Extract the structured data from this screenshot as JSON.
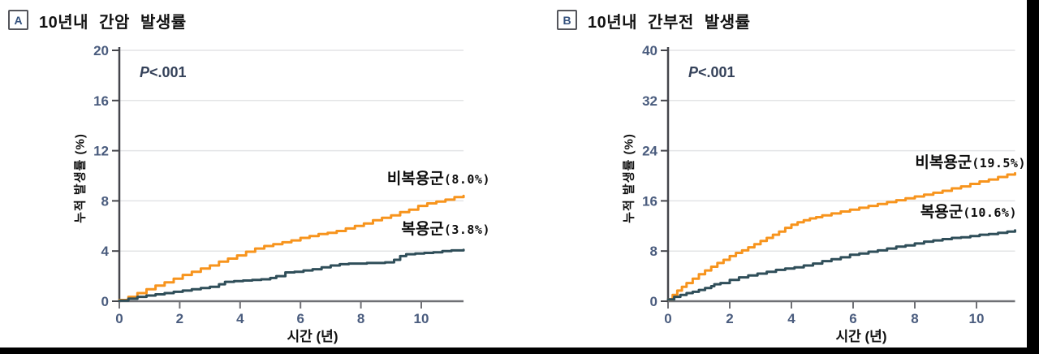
{
  "chart_data": [
    {
      "type": "line",
      "panel_letter": "A",
      "title": "10년내 간암 발생률",
      "p_value": {
        "symbol": "P",
        "text": "<.001"
      },
      "x_axis": {
        "label": "시간 (년)",
        "ticks": [
          0,
          2,
          4,
          6,
          8,
          10
        ],
        "range": [
          0,
          11.4
        ]
      },
      "y_axis": {
        "label": "누적 발생률 (%)",
        "ticks": [
          0,
          4,
          8,
          12,
          16,
          20
        ],
        "range": [
          0,
          20
        ]
      },
      "grid": "horizontal",
      "legend_position": "inline-annotations",
      "series": [
        {
          "name": "비복용군",
          "value_label": "(8.0%)",
          "ten_year_rate_pct": 8.0,
          "color": "#F7941D",
          "points": [
            [
              0,
              0.1
            ],
            [
              0.3,
              0.35
            ],
            [
              0.6,
              0.65
            ],
            [
              0.9,
              0.95
            ],
            [
              1.2,
              1.25
            ],
            [
              1.5,
              1.5
            ],
            [
              1.8,
              1.8
            ],
            [
              2.1,
              2.1
            ],
            [
              2.4,
              2.35
            ],
            [
              2.7,
              2.6
            ],
            [
              3,
              2.85
            ],
            [
              3.3,
              3.15
            ],
            [
              3.6,
              3.4
            ],
            [
              3.9,
              3.65
            ],
            [
              4.2,
              3.95
            ],
            [
              4.5,
              4.2
            ],
            [
              4.8,
              4.4
            ],
            [
              5.1,
              4.55
            ],
            [
              5.4,
              4.7
            ],
            [
              5.7,
              4.85
            ],
            [
              6,
              5.05
            ],
            [
              6.3,
              5.2
            ],
            [
              6.6,
              5.35
            ],
            [
              6.9,
              5.45
            ],
            [
              7.2,
              5.6
            ],
            [
              7.5,
              5.8
            ],
            [
              7.8,
              6
            ],
            [
              8.1,
              6.2
            ],
            [
              8.4,
              6.45
            ],
            [
              8.7,
              6.65
            ],
            [
              9,
              6.85
            ],
            [
              9.3,
              7.1
            ],
            [
              9.6,
              7.3
            ],
            [
              9.9,
              7.6
            ],
            [
              10.2,
              7.8
            ],
            [
              10.5,
              7.95
            ],
            [
              10.8,
              8.1
            ],
            [
              11.1,
              8.3
            ],
            [
              11.4,
              8.4
            ]
          ]
        },
        {
          "name": "복용군",
          "value_label": "(3.8%)",
          "ten_year_rate_pct": 3.8,
          "color": "#2F4E59",
          "points": [
            [
              0,
              0.05
            ],
            [
              0.3,
              0.2
            ],
            [
              0.6,
              0.35
            ],
            [
              0.9,
              0.45
            ],
            [
              1.2,
              0.55
            ],
            [
              1.5,
              0.65
            ],
            [
              1.8,
              0.75
            ],
            [
              2.1,
              0.85
            ],
            [
              2.4,
              0.95
            ],
            [
              2.7,
              1.05
            ],
            [
              3,
              1.15
            ],
            [
              3.3,
              1.35
            ],
            [
              3.5,
              1.55
            ],
            [
              3.8,
              1.6
            ],
            [
              4.1,
              1.65
            ],
            [
              4.4,
              1.7
            ],
            [
              4.7,
              1.75
            ],
            [
              5,
              1.85
            ],
            [
              5.2,
              2
            ],
            [
              5.5,
              2.3
            ],
            [
              5.8,
              2.35
            ],
            [
              6.1,
              2.45
            ],
            [
              6.4,
              2.55
            ],
            [
              6.7,
              2.7
            ],
            [
              7,
              2.85
            ],
            [
              7.3,
              2.95
            ],
            [
              7.6,
              3
            ],
            [
              8.2,
              3.05
            ],
            [
              8.8,
              3.1
            ],
            [
              9.1,
              3.3
            ],
            [
              9.3,
              3.6
            ],
            [
              9.5,
              3.75
            ],
            [
              9.8,
              3.8
            ],
            [
              10.1,
              3.85
            ],
            [
              10.4,
              3.9
            ],
            [
              10.7,
              4
            ],
            [
              11,
              4.05
            ],
            [
              11.4,
              4.1
            ]
          ]
        }
      ]
    },
    {
      "type": "line",
      "panel_letter": "B",
      "title": "10년내 간부전 발생률",
      "p_value": {
        "symbol": "P",
        "text": "<.001"
      },
      "x_axis": {
        "label": "시간 (년)",
        "ticks": [
          0,
          2,
          4,
          6,
          8,
          10
        ],
        "range": [
          0,
          11.25
        ]
      },
      "y_axis": {
        "label": "누적 발생률 (%)",
        "ticks": [
          0,
          8,
          16,
          24,
          32,
          40
        ],
        "range": [
          0,
          40
        ]
      },
      "grid": "horizontal",
      "legend_position": "inline-annotations",
      "series": [
        {
          "name": "비복용군",
          "value_label": "(19.5%)",
          "ten_year_rate_pct": 19.5,
          "color": "#F7941D",
          "points": [
            [
              0,
              0.3
            ],
            [
              0.15,
              1
            ],
            [
              0.3,
              1.7
            ],
            [
              0.45,
              2.3
            ],
            [
              0.6,
              2.9
            ],
            [
              0.8,
              3.6
            ],
            [
              1,
              4.3
            ],
            [
              1.2,
              4.9
            ],
            [
              1.4,
              5.5
            ],
            [
              1.6,
              6.1
            ],
            [
              1.8,
              6.6
            ],
            [
              2,
              7.2
            ],
            [
              2.2,
              7.7
            ],
            [
              2.4,
              8.1
            ],
            [
              2.6,
              8.6
            ],
            [
              2.8,
              9.1
            ],
            [
              3,
              9.6
            ],
            [
              3.2,
              10.1
            ],
            [
              3.4,
              10.6
            ],
            [
              3.6,
              11.1
            ],
            [
              3.8,
              11.7
            ],
            [
              4,
              12.2
            ],
            [
              4.2,
              12.6
            ],
            [
              4.4,
              12.9
            ],
            [
              4.6,
              13.2
            ],
            [
              4.8,
              13.4
            ],
            [
              5,
              13.7
            ],
            [
              5.3,
              14
            ],
            [
              5.6,
              14.3
            ],
            [
              5.9,
              14.6
            ],
            [
              6.2,
              14.9
            ],
            [
              6.5,
              15.2
            ],
            [
              6.8,
              15.5
            ],
            [
              7.1,
              15.8
            ],
            [
              7.4,
              16.1
            ],
            [
              7.7,
              16.4
            ],
            [
              8,
              16.7
            ],
            [
              8.3,
              17
            ],
            [
              8.6,
              17.3
            ],
            [
              8.9,
              17.6
            ],
            [
              9.2,
              18
            ],
            [
              9.5,
              18.3
            ],
            [
              9.8,
              18.7
            ],
            [
              10.1,
              19.1
            ],
            [
              10.4,
              19.4
            ],
            [
              10.7,
              19.8
            ],
            [
              11,
              20.2
            ],
            [
              11.25,
              20.4
            ]
          ]
        },
        {
          "name": "복용군",
          "value_label": "(10.6%)",
          "ten_year_rate_pct": 10.6,
          "color": "#2F4E59",
          "points": [
            [
              0,
              0.3
            ],
            [
              0.2,
              0.7
            ],
            [
              0.4,
              1
            ],
            [
              0.6,
              1.3
            ],
            [
              0.8,
              1.5
            ],
            [
              1,
              1.8
            ],
            [
              1.2,
              2.1
            ],
            [
              1.4,
              2.4
            ],
            [
              1.5,
              2.7
            ],
            [
              1.7,
              2.9
            ],
            [
              2,
              3.4
            ],
            [
              2.3,
              3.8
            ],
            [
              2.6,
              4.1
            ],
            [
              2.9,
              4.4
            ],
            [
              3.2,
              4.7
            ],
            [
              3.5,
              5
            ],
            [
              3.8,
              5.2
            ],
            [
              4.1,
              5.4
            ],
            [
              4.4,
              5.7
            ],
            [
              4.7,
              6
            ],
            [
              5,
              6.4
            ],
            [
              5.3,
              6.7
            ],
            [
              5.6,
              7
            ],
            [
              5.9,
              7.4
            ],
            [
              6.2,
              7.6
            ],
            [
              6.5,
              7.9
            ],
            [
              6.8,
              8.1
            ],
            [
              7.1,
              8.4
            ],
            [
              7.4,
              8.7
            ],
            [
              7.7,
              8.9
            ],
            [
              8,
              9.2
            ],
            [
              8.3,
              9.5
            ],
            [
              8.6,
              9.7
            ],
            [
              8.9,
              9.9
            ],
            [
              9.2,
              10.1
            ],
            [
              9.5,
              10.2
            ],
            [
              9.8,
              10.4
            ],
            [
              10.1,
              10.6
            ],
            [
              10.4,
              10.7
            ],
            [
              10.7,
              10.9
            ],
            [
              11,
              11.1
            ],
            [
              11.25,
              11.3
            ]
          ]
        }
      ]
    }
  ],
  "colors": {
    "non_user_line": "#F7941D",
    "user_line": "#2F4E59",
    "gridline": "#E3E4E6",
    "y_axis": "#45464C",
    "x_axis": "#6F7075",
    "tick_label": "#4A5C7E",
    "p_value_text": "#35425A",
    "border_bars": "#000000"
  }
}
